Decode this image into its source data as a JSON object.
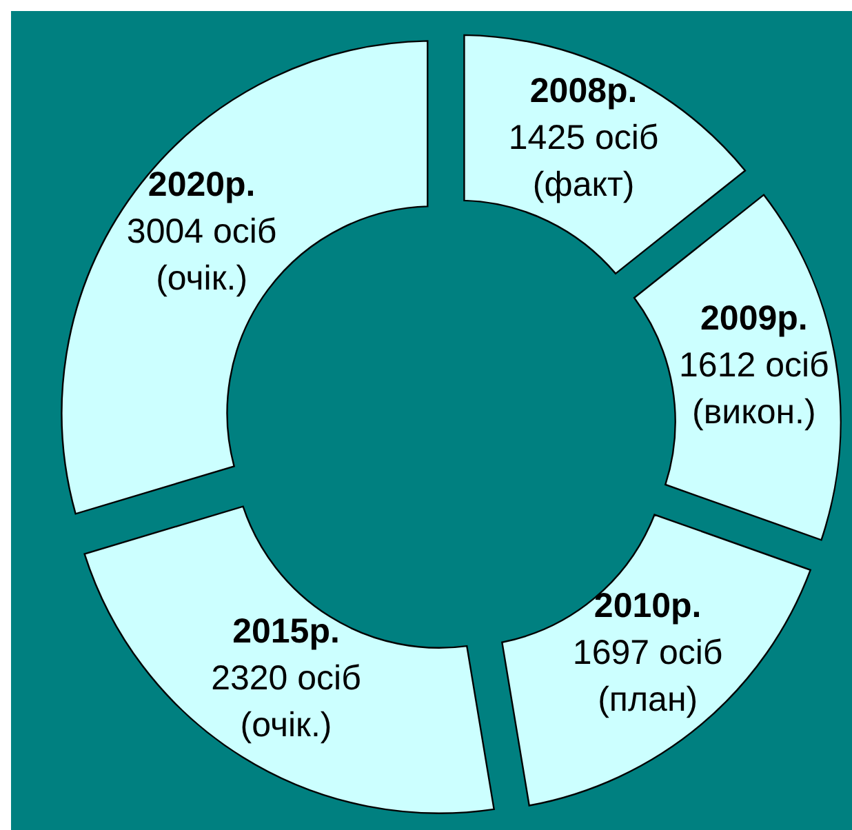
{
  "chart_data": {
    "type": "donut",
    "categories": [
      "2008р.",
      "2009р.",
      "2010р.",
      "2015р.",
      "2020р."
    ],
    "values": [
      1425,
      1612,
      1697,
      2320,
      3004
    ],
    "value_labels": [
      "1425 осіб",
      "1612 осіб",
      "1697 осіб",
      "2320 осіб",
      "3004 осіб"
    ],
    "colors": [
      "#ccffff",
      "#ccffff",
      "#ccffff",
      "#ccffff",
      "#ccffff"
    ],
    "annotations": [
      {
        "text": "(факт)",
        "x": "2008р."
      },
      {
        "text": "(викон.)",
        "x": "2009р."
      },
      {
        "text": "(план)",
        "x": "2010р."
      },
      {
        "text": "(очік.)",
        "x": "2015р."
      },
      {
        "text": "(очік.)",
        "x": "2020р."
      }
    ]
  }
}
